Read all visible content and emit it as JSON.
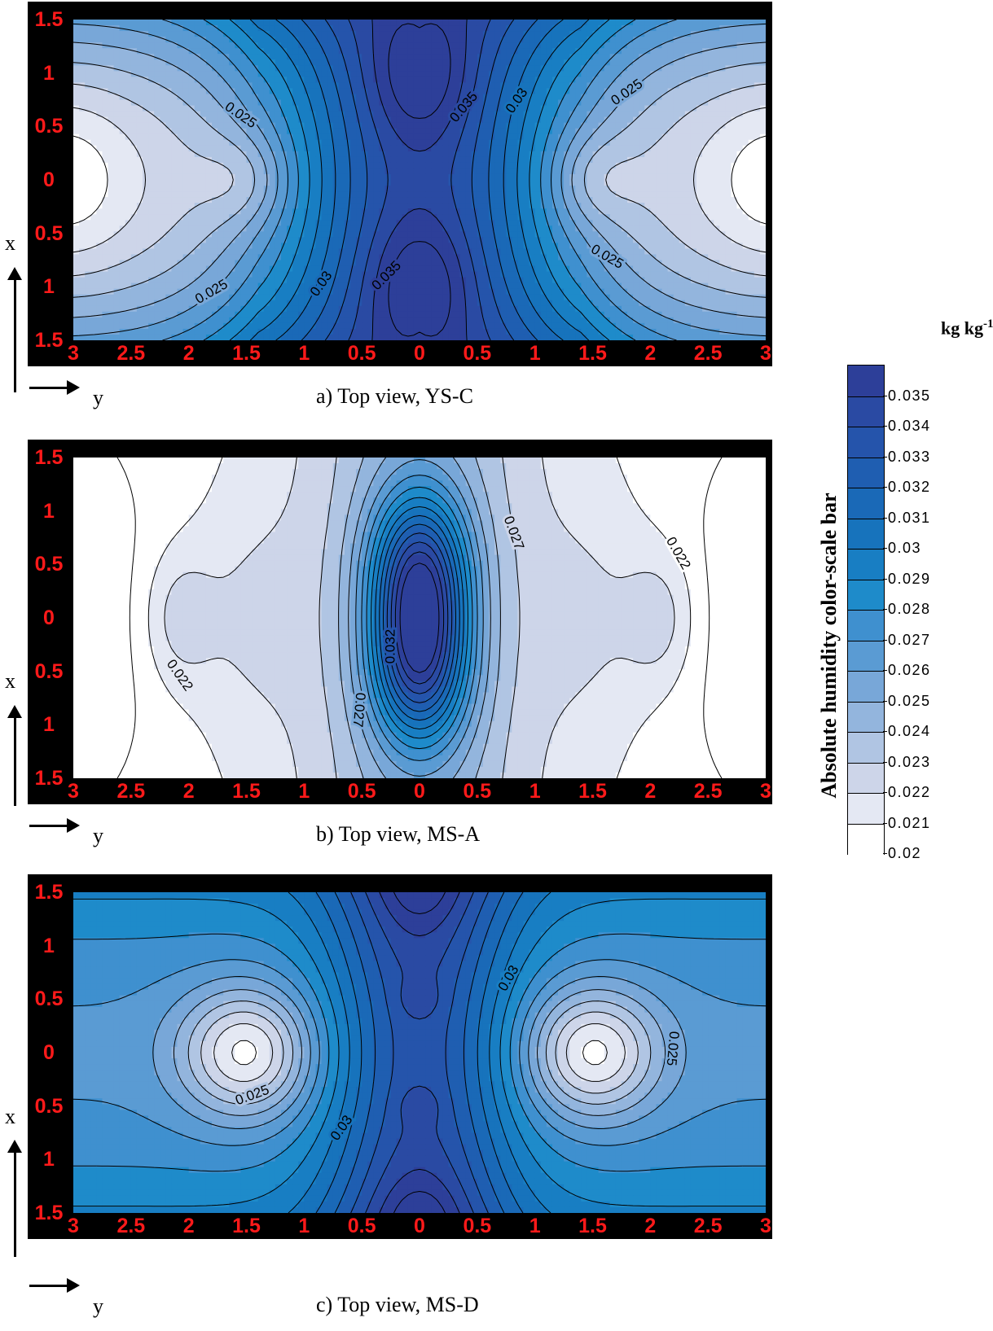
{
  "colorbar": {
    "units_text": "kg kg",
    "units_exp": "-1",
    "title": "Absolute humidity color-scale bar",
    "labels": [
      "0.035",
      "0.034",
      "0.033",
      "0.032",
      "0.031",
      "0.03",
      "0.029",
      "0.028",
      "0.027",
      "0.026",
      "0.025",
      "0.024",
      "0.023",
      "0.022",
      "0.021",
      "0.02"
    ],
    "colors_top_to_bottom": [
      "#2d3f99",
      "#2a4aa3",
      "#2554ab",
      "#1f5eb1",
      "#1a69b7",
      "#1773bc",
      "#187ec3",
      "#1e8bca",
      "#3f90cf",
      "#5a9bd3",
      "#78a7d8",
      "#93b5dd",
      "#b0c5e3",
      "#cdd5e9",
      "#e4e8f3",
      "#ffffff"
    ]
  },
  "chart_data": [
    {
      "type": "heatmap",
      "caption": "a) Top view, YS-C",
      "xlabel": "y",
      "ylabel": "x",
      "x_ticks": [
        "3",
        "2.5",
        "2",
        "1.5",
        "1",
        "0.5",
        "0",
        "0.5",
        "1",
        "1.5",
        "2",
        "2.5",
        "3"
      ],
      "y_ticks": [
        "1.5",
        "1",
        "0.5",
        "0",
        "0.5",
        "1",
        "1.5"
      ],
      "xlim": [
        -3,
        3
      ],
      "ylim": [
        -1.5,
        1.5
      ],
      "contour_labels": [
        "0.025",
        "0.035",
        "0.03",
        "0.025",
        "0.025",
        "0.03",
        "0.035",
        "0.025"
      ],
      "maxima": [
        [
          0,
          1.0
        ],
        [
          0,
          -1.0
        ]
      ],
      "minima": [
        [
          -1.5,
          0
        ],
        [
          1.5,
          0
        ],
        [
          -3,
          0
        ],
        [
          3,
          0
        ]
      ],
      "value_range": [
        0.021,
        0.036
      ]
    },
    {
      "type": "heatmap",
      "caption": "b) Top view, MS-A",
      "xlabel": "y",
      "ylabel": "x",
      "x_ticks": [
        "3",
        "2.5",
        "2",
        "1.5",
        "1",
        "0.5",
        "0",
        "0.5",
        "1",
        "1.5",
        "2",
        "2.5",
        "3"
      ],
      "y_ticks": [
        "1.5",
        "1",
        "0.5",
        "0",
        "0.5",
        "1",
        "1.5"
      ],
      "xlim": [
        -3,
        3
      ],
      "ylim": [
        -1.5,
        1.5
      ],
      "contour_labels": [
        "0.027",
        "0.022",
        "0.022",
        "0.032",
        "0.027"
      ],
      "maxima": [
        [
          0,
          0.45
        ],
        [
          0,
          -0.45
        ]
      ],
      "minima": [
        [
          -3,
          0
        ],
        [
          3,
          0
        ]
      ],
      "value_range": [
        0.02,
        0.033
      ]
    },
    {
      "type": "heatmap",
      "caption": "c) Top view, MS-D",
      "xlabel": "y",
      "ylabel": "x",
      "x_ticks": [
        "3",
        "2.5",
        "2",
        "1.5",
        "1",
        "0.5",
        "0",
        "0.5",
        "1",
        "1.5",
        "2",
        "2.5",
        "3"
      ],
      "y_ticks": [
        "1.5",
        "1",
        "0.5",
        "0",
        "0.5",
        "1",
        "1.5"
      ],
      "xlim": [
        -3,
        3
      ],
      "ylim": [
        -1.5,
        1.5
      ],
      "contour_labels": [
        "0.03",
        "0.025",
        "0.03",
        "0.025"
      ],
      "maxima": [
        [
          0,
          1.5
        ],
        [
          0,
          0.5
        ],
        [
          0,
          -0.5
        ],
        [
          0,
          -1.5
        ]
      ],
      "minima": [
        [
          -1.5,
          0
        ],
        [
          1.5,
          0
        ]
      ],
      "value_range": [
        0.021,
        0.035
      ]
    }
  ]
}
